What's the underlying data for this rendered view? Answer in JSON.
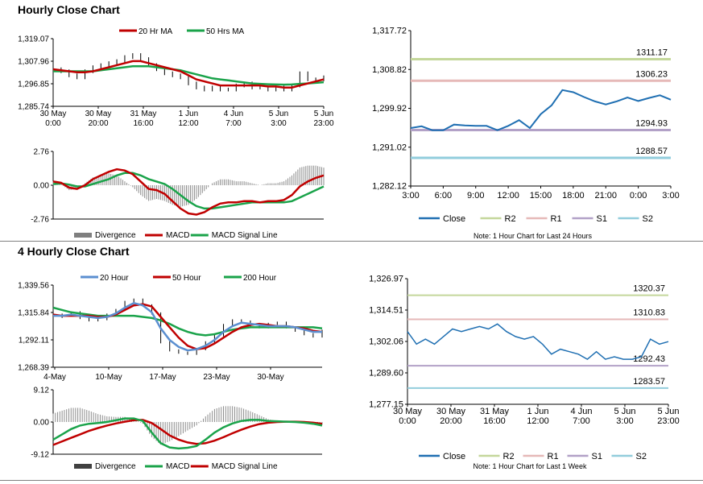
{
  "sections": {
    "hourly_title": "Hourly Close Chart",
    "four_hourly_title": "4 Hourly Close Chart"
  },
  "colors": {
    "close_blue": "#1f6fb2",
    "ma_red": "#c00000",
    "ma_green": "#1aa34a",
    "ma_blue": "#5b8fd0",
    "r2": "#c4d79b",
    "r1": "#e6b9b8",
    "s1": "#b2a1c7",
    "s2": "#92cddc",
    "divergence": "#8c8c8c"
  },
  "chart_data": [
    {
      "id": "hourly_price",
      "type": "line",
      "title": "Hourly Close Chart",
      "y_ticks": [
        "1,319.07",
        "1,307.96",
        "1,296.85",
        "1,285.74"
      ],
      "ylim": [
        1285.74,
        1319.07
      ],
      "x_ticks": [
        {
          "line1": "30 May",
          "line2": "0:00"
        },
        {
          "line1": "30 May",
          "line2": "20:00"
        },
        {
          "line1": "31 May",
          "line2": "16:00"
        },
        {
          "line1": "1 Jun",
          "line2": "12:00"
        },
        {
          "line1": "4 Jun",
          "line2": "7:00"
        },
        {
          "line1": "5 Jun",
          "line2": "3:00"
        },
        {
          "line1": "5 Jun",
          "line2": "23:00"
        }
      ],
      "legend": [
        "20 Hr MA",
        "50 Hrs MA"
      ],
      "series": [
        {
          "name": "Price",
          "values": [
            1304,
            1303,
            1301,
            1300,
            1303,
            1305,
            1306,
            1307,
            1308,
            1310,
            1311,
            1309,
            1306,
            1304,
            1302,
            1301,
            1300,
            1297,
            1295,
            1294,
            1295,
            1294,
            1294,
            1296,
            1297,
            1295,
            1295,
            1294,
            1295,
            1294,
            1296,
            1302,
            1299,
            1299,
            1300
          ]
        },
        {
          "name": "20 Hr MA",
          "values": [
            1304,
            1303.5,
            1303,
            1302.5,
            1302.5,
            1303,
            1304,
            1305,
            1306,
            1307,
            1308,
            1308,
            1307,
            1306,
            1305,
            1304,
            1303,
            1301,
            1299,
            1298,
            1297,
            1296,
            1296,
            1296,
            1296,
            1296,
            1296,
            1295.5,
            1295.5,
            1295,
            1295,
            1296,
            1297,
            1298,
            1299
          ]
        },
        {
          "name": "50 Hrs MA",
          "values": [
            1303,
            1303,
            1303,
            1303,
            1303,
            1303,
            1303.5,
            1304,
            1304.5,
            1305,
            1305.5,
            1305.5,
            1305.5,
            1305,
            1304.5,
            1304,
            1303.5,
            1302.5,
            1301.5,
            1300.5,
            1299.5,
            1299,
            1298.5,
            1298,
            1297.5,
            1297,
            1296.8,
            1296.6,
            1296.5,
            1296.4,
            1296.5,
            1296.8,
            1297,
            1297.3,
            1297.6
          ]
        }
      ]
    },
    {
      "id": "hourly_macd",
      "type": "line",
      "y_ticks": [
        "2.76",
        "0.00",
        "-2.76"
      ],
      "ylim": [
        -2.76,
        2.76
      ],
      "legend": [
        "Divergence",
        "MACD",
        "MACD Signal Line"
      ],
      "series": [
        {
          "name": "MACD",
          "values": [
            0.3,
            0.2,
            -0.2,
            -0.3,
            0,
            0.5,
            0.8,
            1.1,
            1.3,
            1.2,
            0.9,
            0.3,
            -0.3,
            -0.4,
            -0.7,
            -1.3,
            -1.9,
            -2.3,
            -2.4,
            -2.2,
            -1.8,
            -1.5,
            -1.4,
            -1.4,
            -1.3,
            -1.3,
            -1.4,
            -1.3,
            -1.3,
            -1.2,
            -0.8,
            -0.1,
            0.3,
            0.6,
            0.8
          ]
        },
        {
          "name": "MACD Signal Line",
          "values": [
            0.1,
            0.15,
            0.05,
            -0.1,
            -0.1,
            0.1,
            0.3,
            0.5,
            0.8,
            1,
            1,
            0.8,
            0.5,
            0.3,
            0.1,
            -0.3,
            -0.8,
            -1.3,
            -1.7,
            -1.9,
            -1.9,
            -1.8,
            -1.7,
            -1.6,
            -1.5,
            -1.4,
            -1.4,
            -1.4,
            -1.4,
            -1.4,
            -1.3,
            -1.0,
            -0.7,
            -0.4,
            -0.1
          ]
        }
      ]
    },
    {
      "id": "hourly_levels",
      "type": "line",
      "y_ticks": [
        "1,317.72",
        "1,308.82",
        "1,299.92",
        "1,291.02",
        "1,282.12"
      ],
      "ylim": [
        1282.12,
        1317.72
      ],
      "x_ticks": [
        "3:00",
        "6:00",
        "9:00",
        "12:00",
        "15:00",
        "18:00",
        "21:00",
        "0:00",
        "3:00"
      ],
      "levels": [
        {
          "name": "R2",
          "value": 1311.17,
          "label": "1311.17"
        },
        {
          "name": "R1",
          "value": 1306.23,
          "label": "1306.23"
        },
        {
          "name": "S1",
          "value": 1294.93,
          "label": "1294.93"
        },
        {
          "name": "S2",
          "value": 1288.57,
          "label": "1288.57"
        }
      ],
      "series": [
        {
          "name": "Close",
          "values": [
            1295.4,
            1295.8,
            1294.9,
            1294.9,
            1296.2,
            1296.0,
            1295.9,
            1295.9,
            1294.9,
            1295.9,
            1297.2,
            1295.4,
            1298.6,
            1300.6,
            1304.1,
            1303.6,
            1302.5,
            1301.5,
            1300.8,
            1301.5,
            1302.4,
            1301.6,
            1302.3,
            1302.9,
            1301.9
          ]
        }
      ],
      "legend": [
        "Close",
        "R2",
        "R1",
        "S1",
        "S2"
      ],
      "note": "Note: 1 Hour Chart for Last 24 Hours"
    },
    {
      "id": "four_hourly_price",
      "type": "line",
      "title": "4 Hourly Close Chart",
      "y_ticks": [
        "1,339.56",
        "1,315.84",
        "1,292.11",
        "1,268.39"
      ],
      "ylim": [
        1268.39,
        1339.56
      ],
      "x_ticks": [
        "4-May",
        "10-May",
        "17-May",
        "23-May",
        "30-May"
      ],
      "legend": [
        "20 Hour",
        "50 Hour",
        "200 Hour"
      ],
      "series": [
        {
          "name": "Price",
          "values": [
            1312,
            1314,
            1316,
            1311,
            1309,
            1310,
            1314,
            1318,
            1325,
            1327,
            1322,
            1315,
            1290,
            1283,
            1281,
            1280,
            1284,
            1290,
            1296,
            1305,
            1309,
            1308,
            1304,
            1303,
            1306,
            1307,
            1303,
            1300,
            1297,
            1295,
            1300
          ]
        },
        {
          "name": "20 Hour",
          "values": [
            1313,
            1313,
            1314,
            1313,
            1312,
            1311,
            1312,
            1315,
            1320,
            1324,
            1322,
            1316,
            1302,
            1292,
            1286,
            1283,
            1284,
            1287,
            1292,
            1299,
            1304,
            1307,
            1306,
            1305,
            1304,
            1304,
            1304,
            1303,
            1301,
            1299,
            1299
          ]
        },
        {
          "name": "50 Hour",
          "values": [
            1314,
            1313,
            1313,
            1313,
            1313,
            1312,
            1312,
            1314,
            1318,
            1322,
            1323,
            1321,
            1312,
            1303,
            1294,
            1287,
            1284,
            1285,
            1289,
            1294,
            1299,
            1303,
            1305,
            1306,
            1305,
            1304,
            1304,
            1303,
            1302,
            1300,
            1299
          ]
        },
        {
          "name": "200 Hour",
          "values": [
            1320,
            1318,
            1316,
            1315,
            1314,
            1313,
            1313,
            1313,
            1313,
            1313,
            1312,
            1311,
            1309,
            1306,
            1302,
            1299,
            1297,
            1296,
            1297,
            1299,
            1301,
            1302,
            1303,
            1303,
            1303,
            1303,
            1303,
            1303,
            1303,
            1303,
            1302
          ]
        }
      ]
    },
    {
      "id": "four_hourly_macd",
      "type": "line",
      "y_ticks": [
        "9.12",
        "0.00",
        "-9.12"
      ],
      "ylim": [
        -9.12,
        9.12
      ],
      "legend": [
        "Divergence",
        "MACD",
        "MACD Signal Line"
      ],
      "series": [
        {
          "name": "MACD",
          "values": [
            -5,
            -3.5,
            -2,
            -1,
            -0.5,
            -0.3,
            0,
            0.5,
            1,
            1,
            0.3,
            -3,
            -6,
            -7.2,
            -7.5,
            -7.3,
            -6.8,
            -5,
            -3,
            -1.5,
            -0.4,
            0.3,
            0.6,
            0.6,
            0.3,
            0.2,
            0.1,
            0,
            -0.2,
            -0.5,
            -1
          ]
        },
        {
          "name": "MACD Signal Line",
          "values": [
            -6.5,
            -5.5,
            -4.5,
            -3.5,
            -2.5,
            -1.7,
            -1.0,
            -0.4,
            0.1,
            0.5,
            0.6,
            -0.3,
            -2,
            -3.8,
            -5,
            -5.8,
            -6.2,
            -6,
            -5.3,
            -4.3,
            -3.2,
            -2.2,
            -1.3,
            -0.6,
            -0.2,
            0,
            0.1,
            0.1,
            0,
            -0.2,
            -0.5
          ]
        }
      ]
    },
    {
      "id": "four_hourly_levels",
      "type": "line",
      "y_ticks": [
        "1,326.97",
        "1,314.51",
        "1,302.06",
        "1,289.60",
        "1,277.15"
      ],
      "ylim": [
        1277.15,
        1326.97
      ],
      "x_ticks": [
        {
          "line1": "30 May",
          "line2": "0:00"
        },
        {
          "line1": "30 May",
          "line2": "20:00"
        },
        {
          "line1": "31 May",
          "line2": "16:00"
        },
        {
          "line1": "1 Jun",
          "line2": "12:00"
        },
        {
          "line1": "4 Jun",
          "line2": "7:00"
        },
        {
          "line1": "5 Jun",
          "line2": "3:00"
        },
        {
          "line1": "5 Jun",
          "line2": "23:00"
        }
      ],
      "levels": [
        {
          "name": "R2",
          "value": 1320.37,
          "label": "1320.37"
        },
        {
          "name": "R1",
          "value": 1310.83,
          "label": "1310.83"
        },
        {
          "name": "S1",
          "value": 1292.43,
          "label": "1292.43"
        },
        {
          "name": "S2",
          "value": 1283.57,
          "label": "1283.57"
        }
      ],
      "series": [
        {
          "name": "Close",
          "values": [
            1306,
            1301,
            1303,
            1301,
            1304,
            1307,
            1306,
            1307,
            1308,
            1307,
            1309,
            1306,
            1304,
            1303,
            1304,
            1301,
            1297,
            1299,
            1298,
            1297,
            1295,
            1298,
            1295,
            1296,
            1295,
            1295,
            1296,
            1303,
            1301,
            1302
          ]
        }
      ],
      "legend": [
        "Close",
        "R2",
        "R1",
        "S1",
        "S2"
      ],
      "note": "Note: 1 Hour Chart for Last 1 Week"
    }
  ]
}
